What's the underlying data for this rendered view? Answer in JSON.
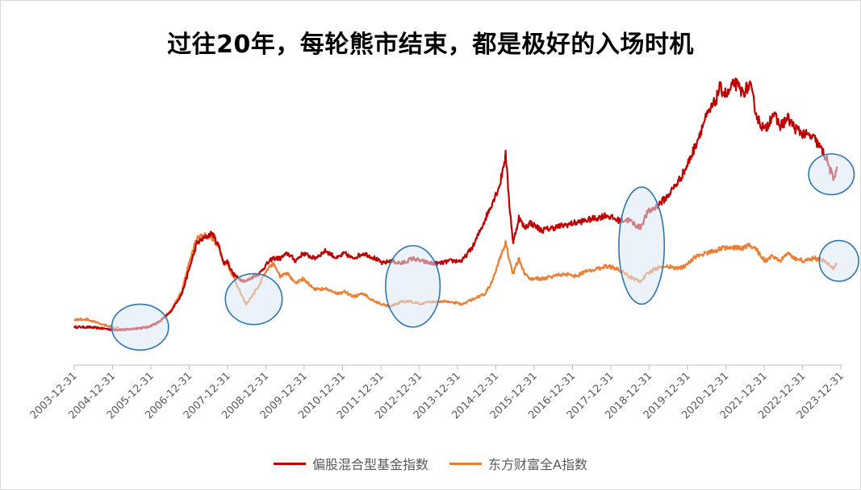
{
  "chart_data": {
    "type": "line",
    "title": "过往20年，每轮熊市结束，都是极好的入场时机",
    "x_tick_labels": [
      "2003-12-31",
      "2004-12-31",
      "2005-12-31",
      "2006-12-31",
      "2007-12-31",
      "2008-12-31",
      "2009-12-31",
      "2010-12-31",
      "2011-12-31",
      "2012-12-31",
      "2013-12-31",
      "2014-12-31",
      "2015-12-31",
      "2016-12-31",
      "2017-12-31",
      "2018-12-31",
      "2019-12-31",
      "2020-12-31",
      "2021-12-31",
      "2022-12-31",
      "2023-12-31"
    ],
    "xlim": [
      2003.96,
      2024.2
    ],
    "ylim": [
      0,
      100
    ],
    "y_axis_labels_shown": false,
    "grid": false,
    "legend_position": "bottom",
    "series": [
      {
        "name": "偏股混合型基金指数",
        "color": "#c00000",
        "x": [
          2003.96,
          2004.3,
          2004.7,
          2004.99,
          2005.3,
          2005.6,
          2005.9,
          2006.2,
          2006.5,
          2006.8,
          2007.0,
          2007.2,
          2007.4,
          2007.6,
          2007.8,
          2007.9,
          2008.0,
          2008.15,
          2008.3,
          2008.5,
          2008.7,
          2008.85,
          2009.0,
          2009.2,
          2009.4,
          2009.6,
          2009.8,
          2010.0,
          2010.3,
          2010.6,
          2010.9,
          2011.1,
          2011.3,
          2011.6,
          2011.9,
          2012.1,
          2012.3,
          2012.6,
          2012.9,
          2013.1,
          2013.4,
          2013.6,
          2013.9,
          2014.2,
          2014.5,
          2014.8,
          2015.0,
          2015.2,
          2015.35,
          2015.45,
          2015.55,
          2015.7,
          2015.85,
          2016.0,
          2016.3,
          2016.6,
          2016.9,
          2017.2,
          2017.5,
          2017.8,
          2018.0,
          2018.3,
          2018.6,
          2018.9,
          2019.1,
          2019.3,
          2019.6,
          2019.9,
          2020.1,
          2020.3,
          2020.6,
          2020.9,
          2021.0,
          2021.2,
          2021.4,
          2021.6,
          2021.8,
          2022.0,
          2022.2,
          2022.4,
          2022.6,
          2022.8,
          2023.0,
          2023.2,
          2023.5,
          2023.8,
          2024.0,
          2024.1
        ],
        "values": [
          7,
          7,
          6.5,
          6,
          6,
          6.5,
          7,
          9,
          13,
          20,
          30,
          40,
          42,
          44,
          38,
          32,
          33,
          28,
          26,
          25,
          27,
          28,
          31,
          34,
          34,
          36,
          33,
          36,
          34,
          37,
          34,
          36,
          34,
          36,
          34,
          32,
          33,
          32,
          34,
          33,
          32,
          32,
          33,
          33,
          39,
          49,
          56,
          63,
          75,
          55,
          40,
          50,
          46,
          48,
          45,
          46,
          47,
          48,
          49,
          50,
          51,
          49,
          49,
          46,
          52,
          54,
          58,
          64,
          69,
          76,
          88,
          96,
          101,
          98,
          103,
          99,
          102,
          89,
          84,
          91,
          86,
          89,
          85,
          83,
          81,
          74,
          65,
          70
        ]
      },
      {
        "name": "东方财富全A指数",
        "color": "#ed7d31",
        "x": [
          2003.96,
          2004.3,
          2004.7,
          2004.99,
          2005.3,
          2005.6,
          2005.9,
          2006.2,
          2006.5,
          2006.8,
          2007.0,
          2007.2,
          2007.4,
          2007.6,
          2007.8,
          2007.9,
          2008.0,
          2008.15,
          2008.3,
          2008.5,
          2008.7,
          2008.85,
          2009.0,
          2009.2,
          2009.4,
          2009.6,
          2009.8,
          2010.0,
          2010.3,
          2010.6,
          2010.9,
          2011.1,
          2011.3,
          2011.6,
          2011.9,
          2012.1,
          2012.3,
          2012.6,
          2012.9,
          2013.1,
          2013.4,
          2013.6,
          2013.9,
          2014.2,
          2014.5,
          2014.8,
          2015.0,
          2015.2,
          2015.35,
          2015.45,
          2015.55,
          2015.7,
          2015.85,
          2016.0,
          2016.3,
          2016.6,
          2016.9,
          2017.2,
          2017.5,
          2017.8,
          2018.0,
          2018.3,
          2018.6,
          2018.9,
          2019.1,
          2019.3,
          2019.6,
          2019.9,
          2020.1,
          2020.3,
          2020.6,
          2020.9,
          2021.0,
          2021.2,
          2021.4,
          2021.6,
          2021.8,
          2022.0,
          2022.2,
          2022.4,
          2022.6,
          2022.8,
          2023.0,
          2023.2,
          2023.5,
          2023.8,
          2024.0,
          2024.1
        ],
        "values": [
          10,
          10,
          8,
          7,
          6,
          6.5,
          7,
          9,
          13,
          21,
          33,
          42,
          43,
          42,
          38,
          32,
          32,
          27,
          22,
          16,
          20,
          24,
          28,
          32,
          27,
          28,
          24,
          26,
          22,
          22,
          20,
          21,
          19,
          20,
          17,
          16,
          15,
          17,
          17,
          16,
          17,
          17,
          17,
          16,
          18,
          20,
          25,
          34,
          40,
          33,
          28,
          34,
          28,
          26,
          26,
          27,
          28,
          27,
          29,
          30,
          31,
          30,
          27,
          25,
          28,
          30,
          31,
          30,
          31,
          34,
          36,
          37,
          38,
          38,
          38,
          38,
          39,
          37,
          33,
          35,
          33,
          36,
          34,
          33,
          34,
          33,
          30,
          32
        ]
      }
    ],
    "highlight_regions": [
      {
        "x_center": 2005.7,
        "y_center": 7,
        "rx_years": 0.75,
        "ry": 9
      },
      {
        "x_center": 2008.7,
        "y_center": 18,
        "rx_years": 0.75,
        "ry": 10
      },
      {
        "x_center": 2012.9,
        "y_center": 23,
        "rx_years": 0.72,
        "ry": 16
      },
      {
        "x_center": 2018.94,
        "y_center": 39,
        "rx_years": 0.6,
        "ry": 23
      },
      {
        "x_center": 2023.95,
        "y_center": 67,
        "rx_years": 0.6,
        "ry": 8
      },
      {
        "x_center": 2024.15,
        "y_center": 33,
        "rx_years": 0.52,
        "ry": 8
      }
    ]
  }
}
